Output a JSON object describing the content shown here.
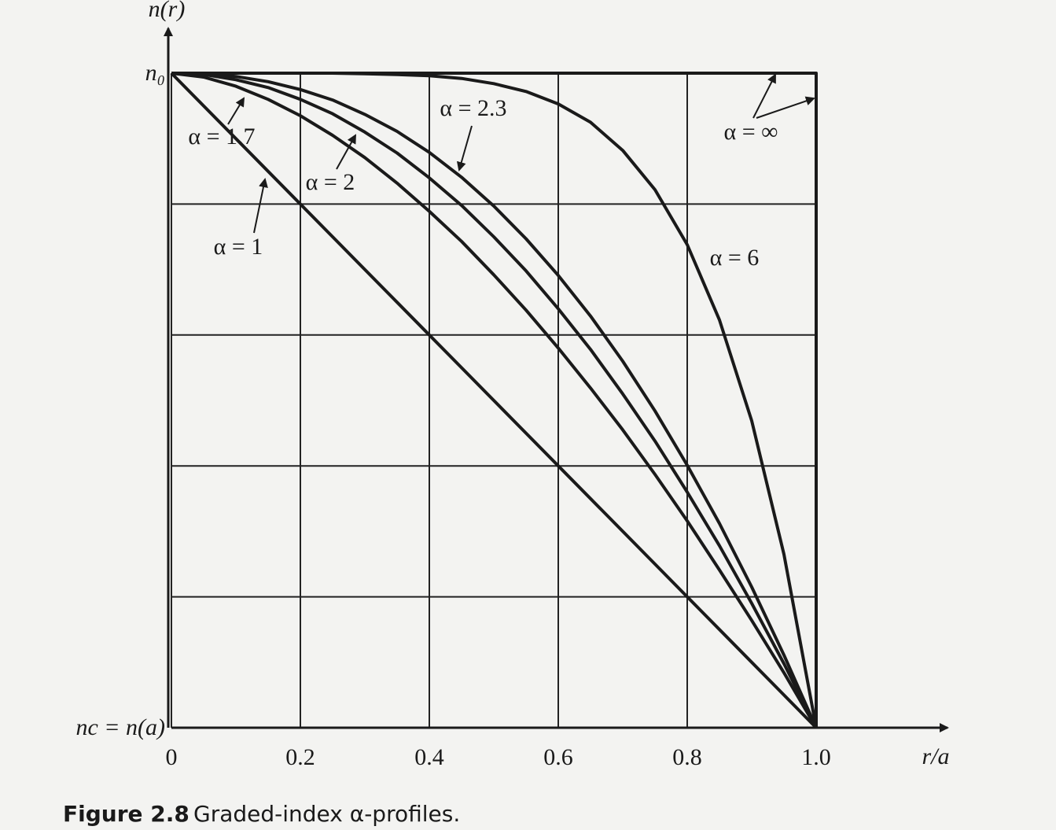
{
  "chart_data": {
    "type": "line",
    "y_label": "n(r)",
    "x_label": "r/a",
    "x": [
      0,
      0.05,
      0.1,
      0.15,
      0.2,
      0.25,
      0.3,
      0.35,
      0.4,
      0.45,
      0.5,
      0.55,
      0.6,
      0.65,
      0.7,
      0.75,
      0.8,
      0.85,
      0.9,
      0.95,
      1
    ],
    "xlim": [
      0,
      1
    ],
    "ylim": [
      0,
      1
    ],
    "xticks": [
      0,
      0.2,
      0.4,
      0.6,
      0.8,
      {
        "value": 1,
        "label": "1.0"
      }
    ],
    "yticks": [
      {
        "value": 0,
        "label": "nc = n(a)"
      },
      {
        "value": 1,
        "label": "n₀"
      }
    ],
    "ygrid": [
      0,
      0.2,
      0.4,
      0.6,
      0.8,
      1
    ],
    "grid": true,
    "series": [
      {
        "name": "α = 1",
        "color": "#1a1a1a",
        "values": [
          1,
          0.95,
          0.9,
          0.85,
          0.8,
          0.75,
          0.7,
          0.65,
          0.6,
          0.55,
          0.5,
          0.45,
          0.4,
          0.35,
          0.3,
          0.25,
          0.2,
          0.15,
          0.1,
          0.05,
          0
        ]
      },
      {
        "name": "α = 1.7",
        "color": "#1a1a1a",
        "values": [
          1,
          0.994,
          0.98,
          0.96,
          0.935,
          0.905,
          0.871,
          0.832,
          0.789,
          0.743,
          0.692,
          0.638,
          0.58,
          0.519,
          0.455,
          0.387,
          0.316,
          0.241,
          0.164,
          0.084,
          0
        ]
      },
      {
        "name": "α = 2",
        "color": "#1a1a1a",
        "values": [
          1,
          0.998,
          0.99,
          0.978,
          0.96,
          0.938,
          0.91,
          0.878,
          0.84,
          0.798,
          0.75,
          0.698,
          0.64,
          0.578,
          0.51,
          0.438,
          0.36,
          0.278,
          0.19,
          0.098,
          0
        ]
      },
      {
        "name": "α = 2.3",
        "color": "#1a1a1a",
        "values": [
          1,
          0.999,
          0.995,
          0.987,
          0.975,
          0.959,
          0.937,
          0.911,
          0.879,
          0.841,
          0.797,
          0.747,
          0.691,
          0.629,
          0.56,
          0.484,
          0.401,
          0.312,
          0.215,
          0.111,
          0
        ]
      },
      {
        "name": "α = 6",
        "color": "#1a1a1a",
        "values": [
          1,
          1,
          1,
          1,
          1,
          1,
          0.999,
          0.998,
          0.996,
          0.992,
          0.984,
          0.972,
          0.953,
          0.925,
          0.882,
          0.822,
          0.738,
          0.623,
          0.469,
          0.265,
          0
        ]
      },
      {
        "name": "α = ∞",
        "color": "#1a1a1a",
        "x": [
          0,
          1,
          1
        ],
        "values": [
          1,
          1,
          0
        ]
      }
    ],
    "figure_label": "Figure 2.8",
    "caption": "Graded-index α-profiles."
  }
}
